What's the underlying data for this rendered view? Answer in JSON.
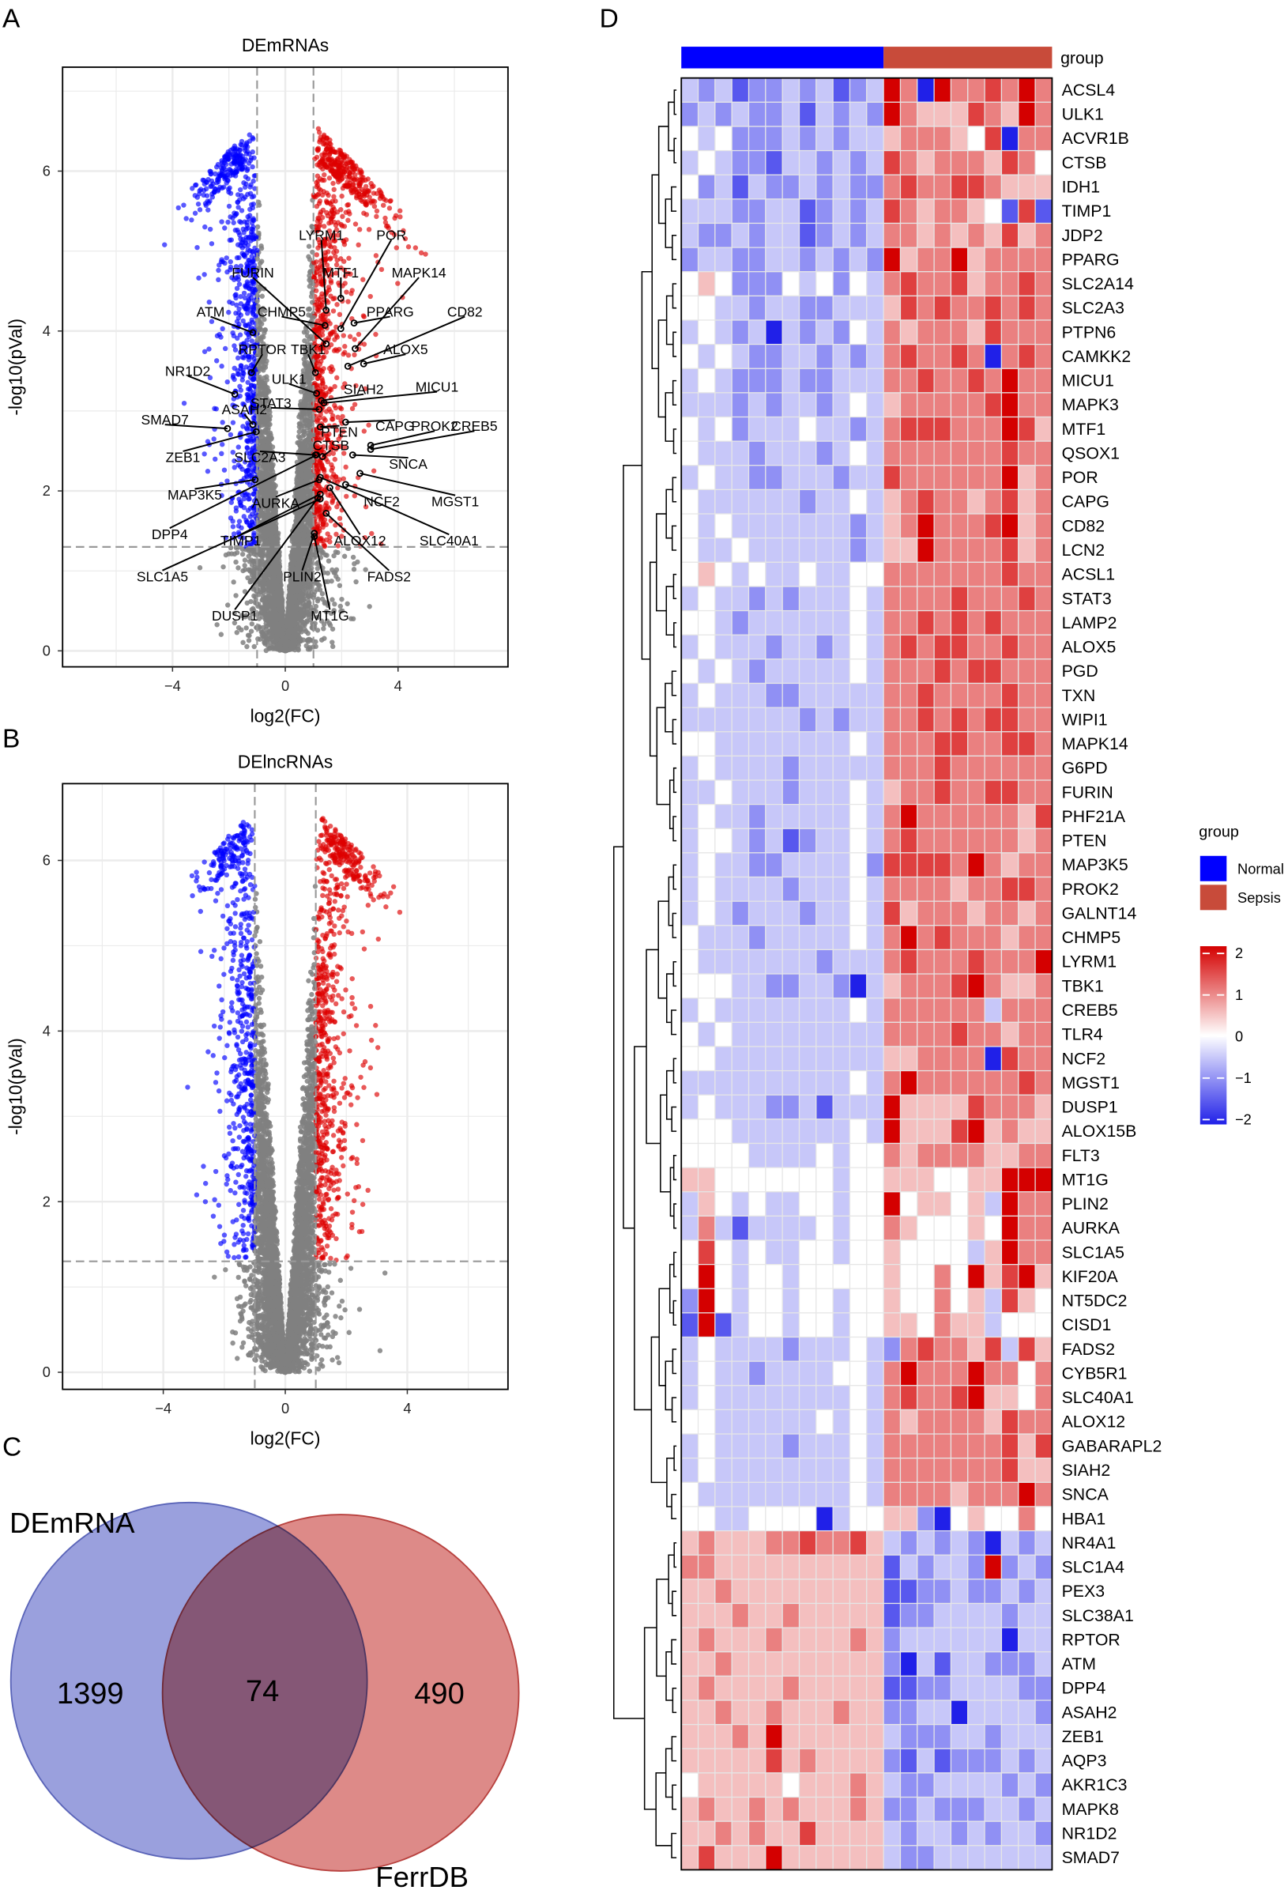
{
  "panels": {
    "a": "A",
    "b": "B",
    "c": "C",
    "d": "D"
  },
  "chart_data": [
    {
      "type": "scatter",
      "id": "volcano-mrna",
      "title": "DEmRNAs",
      "xlabel": "log2(FC)",
      "ylabel": "-log10(pVal)",
      "xlim": [
        -7.9,
        7.9
      ],
      "ylim": [
        -0.2,
        7.3
      ],
      "xticks": [
        -4,
        0,
        4
      ],
      "yticks": [
        0,
        2,
        4,
        6
      ],
      "xtick_labels": [
        "−4",
        "0",
        "4"
      ],
      "ytick_labels": [
        "0",
        "2",
        "4",
        "6"
      ],
      "thresholds": {
        "log2fc": 1,
        "neg_log10_p": 1.3
      },
      "colors": {
        "down": "#0000FF",
        "up": "#DD0000",
        "ns": "#808080"
      },
      "grid": true,
      "labeled_genes": [
        {
          "gene": "LYRM1",
          "x": 1.45,
          "y": 4.26,
          "lx": 1.28,
          "ly": 5.2
        },
        {
          "gene": "POR",
          "x": 1.97,
          "y": 4.03,
          "lx": 3.76,
          "ly": 5.2
        },
        {
          "gene": "MTF1",
          "x": 1.97,
          "y": 4.41,
          "lx": 1.97,
          "ly": 4.73
        },
        {
          "gene": "MAPK14",
          "x": 2.48,
          "y": 3.78,
          "lx": 4.74,
          "ly": 4.73
        },
        {
          "gene": "FURIN",
          "x": 1.45,
          "y": 3.84,
          "lx": -1.15,
          "ly": 4.73
        },
        {
          "gene": "PPARG",
          "x": 2.44,
          "y": 4.1,
          "lx": 3.72,
          "ly": 4.24
        },
        {
          "gene": "CD82",
          "x": 2.22,
          "y": 3.56,
          "lx": 6.37,
          "ly": 4.24
        },
        {
          "gene": "ATM",
          "x": -1.15,
          "y": 3.98,
          "lx": -2.65,
          "ly": 4.24
        },
        {
          "gene": "CHMP5",
          "x": 1.41,
          "y": 4.07,
          "lx": -0.13,
          "ly": 4.24
        },
        {
          "gene": "ALOX5",
          "x": 2.78,
          "y": 3.59,
          "lx": 4.27,
          "ly": 3.77
        },
        {
          "gene": "RPTOR",
          "x": -1.2,
          "y": 3.48,
          "lx": -0.81,
          "ly": 3.77
        },
        {
          "gene": "TBK1",
          "x": 1.07,
          "y": 3.48,
          "lx": 0.81,
          "ly": 3.77
        },
        {
          "gene": "NR1D2",
          "x": -1.79,
          "y": 3.21,
          "lx": -3.46,
          "ly": 3.5
        },
        {
          "gene": "ULK1",
          "x": 1.11,
          "y": 3.22,
          "lx": 0.13,
          "ly": 3.4
        },
        {
          "gene": "SIAH2",
          "x": 1.28,
          "y": 3.13,
          "lx": 2.78,
          "ly": 3.27
        },
        {
          "gene": "MICU1",
          "x": 1.37,
          "y": 3.1,
          "lx": 5.38,
          "ly": 3.3
        },
        {
          "gene": "STAT3",
          "x": 1.2,
          "y": 3.02,
          "lx": -0.51,
          "ly": 3.1
        },
        {
          "gene": "ASAH2",
          "x": -1.15,
          "y": 2.83,
          "lx": -1.45,
          "ly": 3.02
        },
        {
          "gene": "SMAD7",
          "x": -2.05,
          "y": 2.78,
          "lx": -4.27,
          "ly": 2.89
        },
        {
          "gene": "CAPG",
          "x": 2.14,
          "y": 2.86,
          "lx": 3.89,
          "ly": 2.81
        },
        {
          "gene": "PROK2",
          "x": 3.03,
          "y": 2.57,
          "lx": 5.3,
          "ly": 2.81
        },
        {
          "gene": "CREB5",
          "x": 3.03,
          "y": 2.52,
          "lx": 6.71,
          "ly": 2.81
        },
        {
          "gene": "PTEN",
          "x": 1.24,
          "y": 2.8,
          "lx": 1.92,
          "ly": 2.74
        },
        {
          "gene": "CTSB",
          "x": 1.32,
          "y": 2.43,
          "lx": 1.62,
          "ly": 2.57
        },
        {
          "gene": "ZEB1",
          "x": -1.03,
          "y": 2.74,
          "lx": -3.63,
          "ly": 2.42
        },
        {
          "gene": "SLC2A3",
          "x": 1.07,
          "y": 2.45,
          "lx": -0.9,
          "ly": 2.42
        },
        {
          "gene": "SNCA",
          "x": 2.39,
          "y": 2.45,
          "lx": 4.36,
          "ly": 2.34
        },
        {
          "gene": "MAP3K5",
          "x": -1.07,
          "y": 2.14,
          "lx": -3.21,
          "ly": 1.95
        },
        {
          "gene": "AURKA",
          "x": 1.2,
          "y": 2.14,
          "lx": -0.34,
          "ly": 1.85
        },
        {
          "gene": "NCF2",
          "x": 2.14,
          "y": 2.08,
          "lx": 3.42,
          "ly": 1.87
        },
        {
          "gene": "MGST1",
          "x": 2.65,
          "y": 2.22,
          "lx": 6.03,
          "ly": 1.87
        },
        {
          "gene": "DPP4",
          "x": 1.11,
          "y": 2.45,
          "lx": -4.1,
          "ly": 1.46
        },
        {
          "gene": "TIMP1",
          "x": 1.24,
          "y": 1.96,
          "lx": -1.58,
          "ly": 1.38
        },
        {
          "gene": "ALOX12",
          "x": 1.58,
          "y": 2.04,
          "lx": 2.65,
          "ly": 1.38
        },
        {
          "gene": "SLC40A1",
          "x": 1.24,
          "y": 2.17,
          "lx": 5.81,
          "ly": 1.38
        },
        {
          "gene": "SLC1A5",
          "x": 1.24,
          "y": 1.9,
          "lx": -4.36,
          "ly": 0.93
        },
        {
          "gene": "PLIN2",
          "x": 1.03,
          "y": 1.47,
          "lx": 0.6,
          "ly": 0.93
        },
        {
          "gene": "FADS2",
          "x": 1.45,
          "y": 1.72,
          "lx": 3.68,
          "ly": 0.93
        },
        {
          "gene": "DUSP1",
          "x": 1.15,
          "y": 1.91,
          "lx": -1.79,
          "ly": 0.44
        },
        {
          "gene": "MT1G",
          "x": 1.03,
          "y": 1.43,
          "lx": 1.58,
          "ly": 0.44
        }
      ]
    },
    {
      "type": "scatter",
      "id": "volcano-lncrna",
      "title": "DElncRNAs",
      "xlabel": "log2(FC)",
      "ylabel": "-log10(pVal)",
      "xlim": [
        -7.3,
        7.3
      ],
      "ylim": [
        -0.2,
        6.9
      ],
      "xticks": [
        -4,
        0,
        4
      ],
      "yticks": [
        0,
        2,
        4,
        6
      ],
      "xtick_labels": [
        "−4",
        "0",
        "4"
      ],
      "ytick_labels": [
        "0",
        "2",
        "4",
        "6"
      ],
      "thresholds": {
        "log2fc": 1,
        "neg_log10_p": 1.3
      },
      "colors": {
        "down": "#0000FF",
        "up": "#DD0000",
        "ns": "#808080"
      },
      "grid": true
    },
    {
      "type": "venn",
      "id": "venn",
      "sets": [
        {
          "name": "DEmRNA",
          "only": "1399",
          "color": "#9aa0dd"
        },
        {
          "name": "FerrDB",
          "only": "490",
          "color": "#dd8a88"
        }
      ],
      "intersection": "74"
    },
    {
      "type": "heatmap",
      "id": "heatmap",
      "group_label": "group",
      "groups": [
        {
          "name": "Normal",
          "n": 12,
          "color": "#0000FF"
        },
        {
          "name": "Sepsis",
          "n": 10,
          "color": "#C84B3A"
        }
      ],
      "legend": {
        "title": "group",
        "scale_ticks": [
          "2",
          "1",
          "0",
          "−1",
          "−2"
        ],
        "scale_values": [
          2,
          1,
          0,
          -1,
          -2
        ]
      },
      "value_encoding": "digit d -> value d/2 - 2",
      "colors": {
        "low": "#2020E8",
        "mid": "#FFFFFF",
        "high": "#D40000"
      },
      "rows": [
        {
          "gene": "ACSL4",
          "v": "3231223231238608667686"
        },
        {
          "gene": "ULK1",
          "v": "2323223132328655576586"
        },
        {
          "gene": "ACVR1B",
          "v": "4342223232335666547066"
        },
        {
          "gene": "CTSB",
          "v": "3432213323237656665764"
        },
        {
          "gene": "IDH1",
          "v": "4231322323226766776555"
        },
        {
          "gene": "TIMP1",
          "v": "3332233123237656654171"
        },
        {
          "gene": "JDP2",
          "v": "3223233123236656565756"
        },
        {
          "gene": "PPARG",
          "v": "2332233232328566856666"
        },
        {
          "gene": "SLC2A14",
          "v": "4542224342436766756676"
        },
        {
          "gene": "SLC2A3",
          "v": "4433233223335767667676"
        },
        {
          "gene": "PTPN6",
          "v": "3432303232436566657666"
        },
        {
          "gene": "CAMKK2",
          "v": "4343223323236766760676"
        },
        {
          "gene": "MICU1",
          "v": "3432223223336676676866"
        },
        {
          "gene": "MAPK3",
          "v": "3332323323435666667866"
        },
        {
          "gene": "MTF1",
          "v": "4342333433236777666875"
        },
        {
          "gene": "QSOX1",
          "v": "4333233323436666666766"
        },
        {
          "gene": "POR",
          "v": "3433223332337666666856"
        },
        {
          "gene": "CAPG",
          "v": "4333333233435676656756"
        },
        {
          "gene": "CD82",
          "v": "4343333333235686667856"
        },
        {
          "gene": "LCN2",
          "v": "4334333333235586666756"
        },
        {
          "gene": "ACSL1",
          "v": "4543433433446666666766"
        },
        {
          "gene": "STAT3",
          "v": "3433232333436666766676"
        },
        {
          "gene": "LAMP2",
          "v": "4432333333436676767666"
        },
        {
          "gene": "ALOX5",
          "v": "3433323323436767766766"
        },
        {
          "gene": "PGD",
          "v": "4343233333436667677666"
        },
        {
          "gene": "TXN",
          "v": "3433322333336676666766"
        },
        {
          "gene": "WIPI1",
          "v": "3333333232336676767766"
        },
        {
          "gene": "MAPK14",
          "v": "4433333333436667766776"
        },
        {
          "gene": "G6PD",
          "v": "3433332333336667666666"
        },
        {
          "gene": "FURIN",
          "v": "3343332333435667667766"
        },
        {
          "gene": "PHF21A",
          "v": "3433233333436866666657"
        },
        {
          "gene": "PTEN",
          "v": "3443231233436766666656"
        },
        {
          "gene": "MAP3K5",
          "v": "3433223333427777686566"
        },
        {
          "gene": "PROK2",
          "v": "3433332333436666566776"
        },
        {
          "gene": "GALNT14",
          "v": "3432333233437566656656"
        },
        {
          "gene": "CHMP5",
          "v": "4333233333436867666566"
        },
        {
          "gene": "LYRM1",
          "v": "4333333323336766676668"
        },
        {
          "gene": "TBK1",
          "v": "4443322332035666786556"
        },
        {
          "gene": "CREB5",
          "v": "3433333333436666663666"
        },
        {
          "gene": "TLR4",
          "v": "4343333333336666766566"
        },
        {
          "gene": "NCF2",
          "v": "4433333333335566660766"
        },
        {
          "gene": "MGST1",
          "v": "3333333333436866666676"
        },
        {
          "gene": "DUSP1",
          "v": "3433322313338555576665"
        },
        {
          "gene": "ALOX15B",
          "v": "4443333333438555785655"
        },
        {
          "gene": "FLT3",
          "v": "4444333343446566665566"
        },
        {
          "gene": "MT1G",
          "v": "5544444443445554455888"
        },
        {
          "gene": "PLIN2",
          "v": "3543433443448455453866"
        },
        {
          "gene": "AURKA",
          "v": "3631333343446544454866"
        },
        {
          "gene": "SLC1A5",
          "v": "4743433443445444435866"
        },
        {
          "gene": "KIF20A",
          "v": "4843443444445446485785"
        },
        {
          "gene": "NT5DC2",
          "v": "2843443443445446453754"
        },
        {
          "gene": "CISD1",
          "v": "1813443443445546553444"
        },
        {
          "gene": "FADS2",
          "v": "3433332333432676657375"
        },
        {
          "gene": "CYB5R1",
          "v": "3433233334436866686646"
        },
        {
          "gene": "SLC40A1",
          "v": "3433333333436766785546"
        },
        {
          "gene": "ALOX12",
          "v": "4433333343436566665766"
        },
        {
          "gene": "GABARAPL2",
          "v": "3433332333436666666757"
        },
        {
          "gene": "SIAH2",
          "v": "3433333333436666666755"
        },
        {
          "gene": "SNCA",
          "v": "4333333333436666566686"
        },
        {
          "gene": "HBA1",
          "v": "4433444403445520454464"
        },
        {
          "gene": "NR4A1",
          "v": "5655566766753232320323"
        },
        {
          "gene": "SLC1A4",
          "v": "6655555555551323328232"
        },
        {
          "gene": "PEX3",
          "v": "5565555555551122322323"
        },
        {
          "gene": "SLC38A1",
          "v": "5556556555551223333233"
        },
        {
          "gene": "RPTOR",
          "v": "5655565555652333333033"
        },
        {
          "gene": "ATM",
          "v": "5565555555552031332223"
        },
        {
          "gene": "DPP4",
          "v": "5655556555551122333322"
        },
        {
          "gene": "ASAH2",
          "v": "5565565556552233033332"
        },
        {
          "gene": "ZEB1",
          "v": "5556585555553222332333"
        },
        {
          "gene": "AQP3",
          "v": "5555575655552131222323"
        },
        {
          "gene": "AKR1C3",
          "v": "4555554555653223333232"
        },
        {
          "gene": "MAPK8",
          "v": "5655656555652232223323"
        },
        {
          "gene": "NR1D2",
          "v": "5565655755553233232332"
        },
        {
          "gene": "SMAD7",
          "v": "5755585555553223333333"
        }
      ]
    }
  ]
}
